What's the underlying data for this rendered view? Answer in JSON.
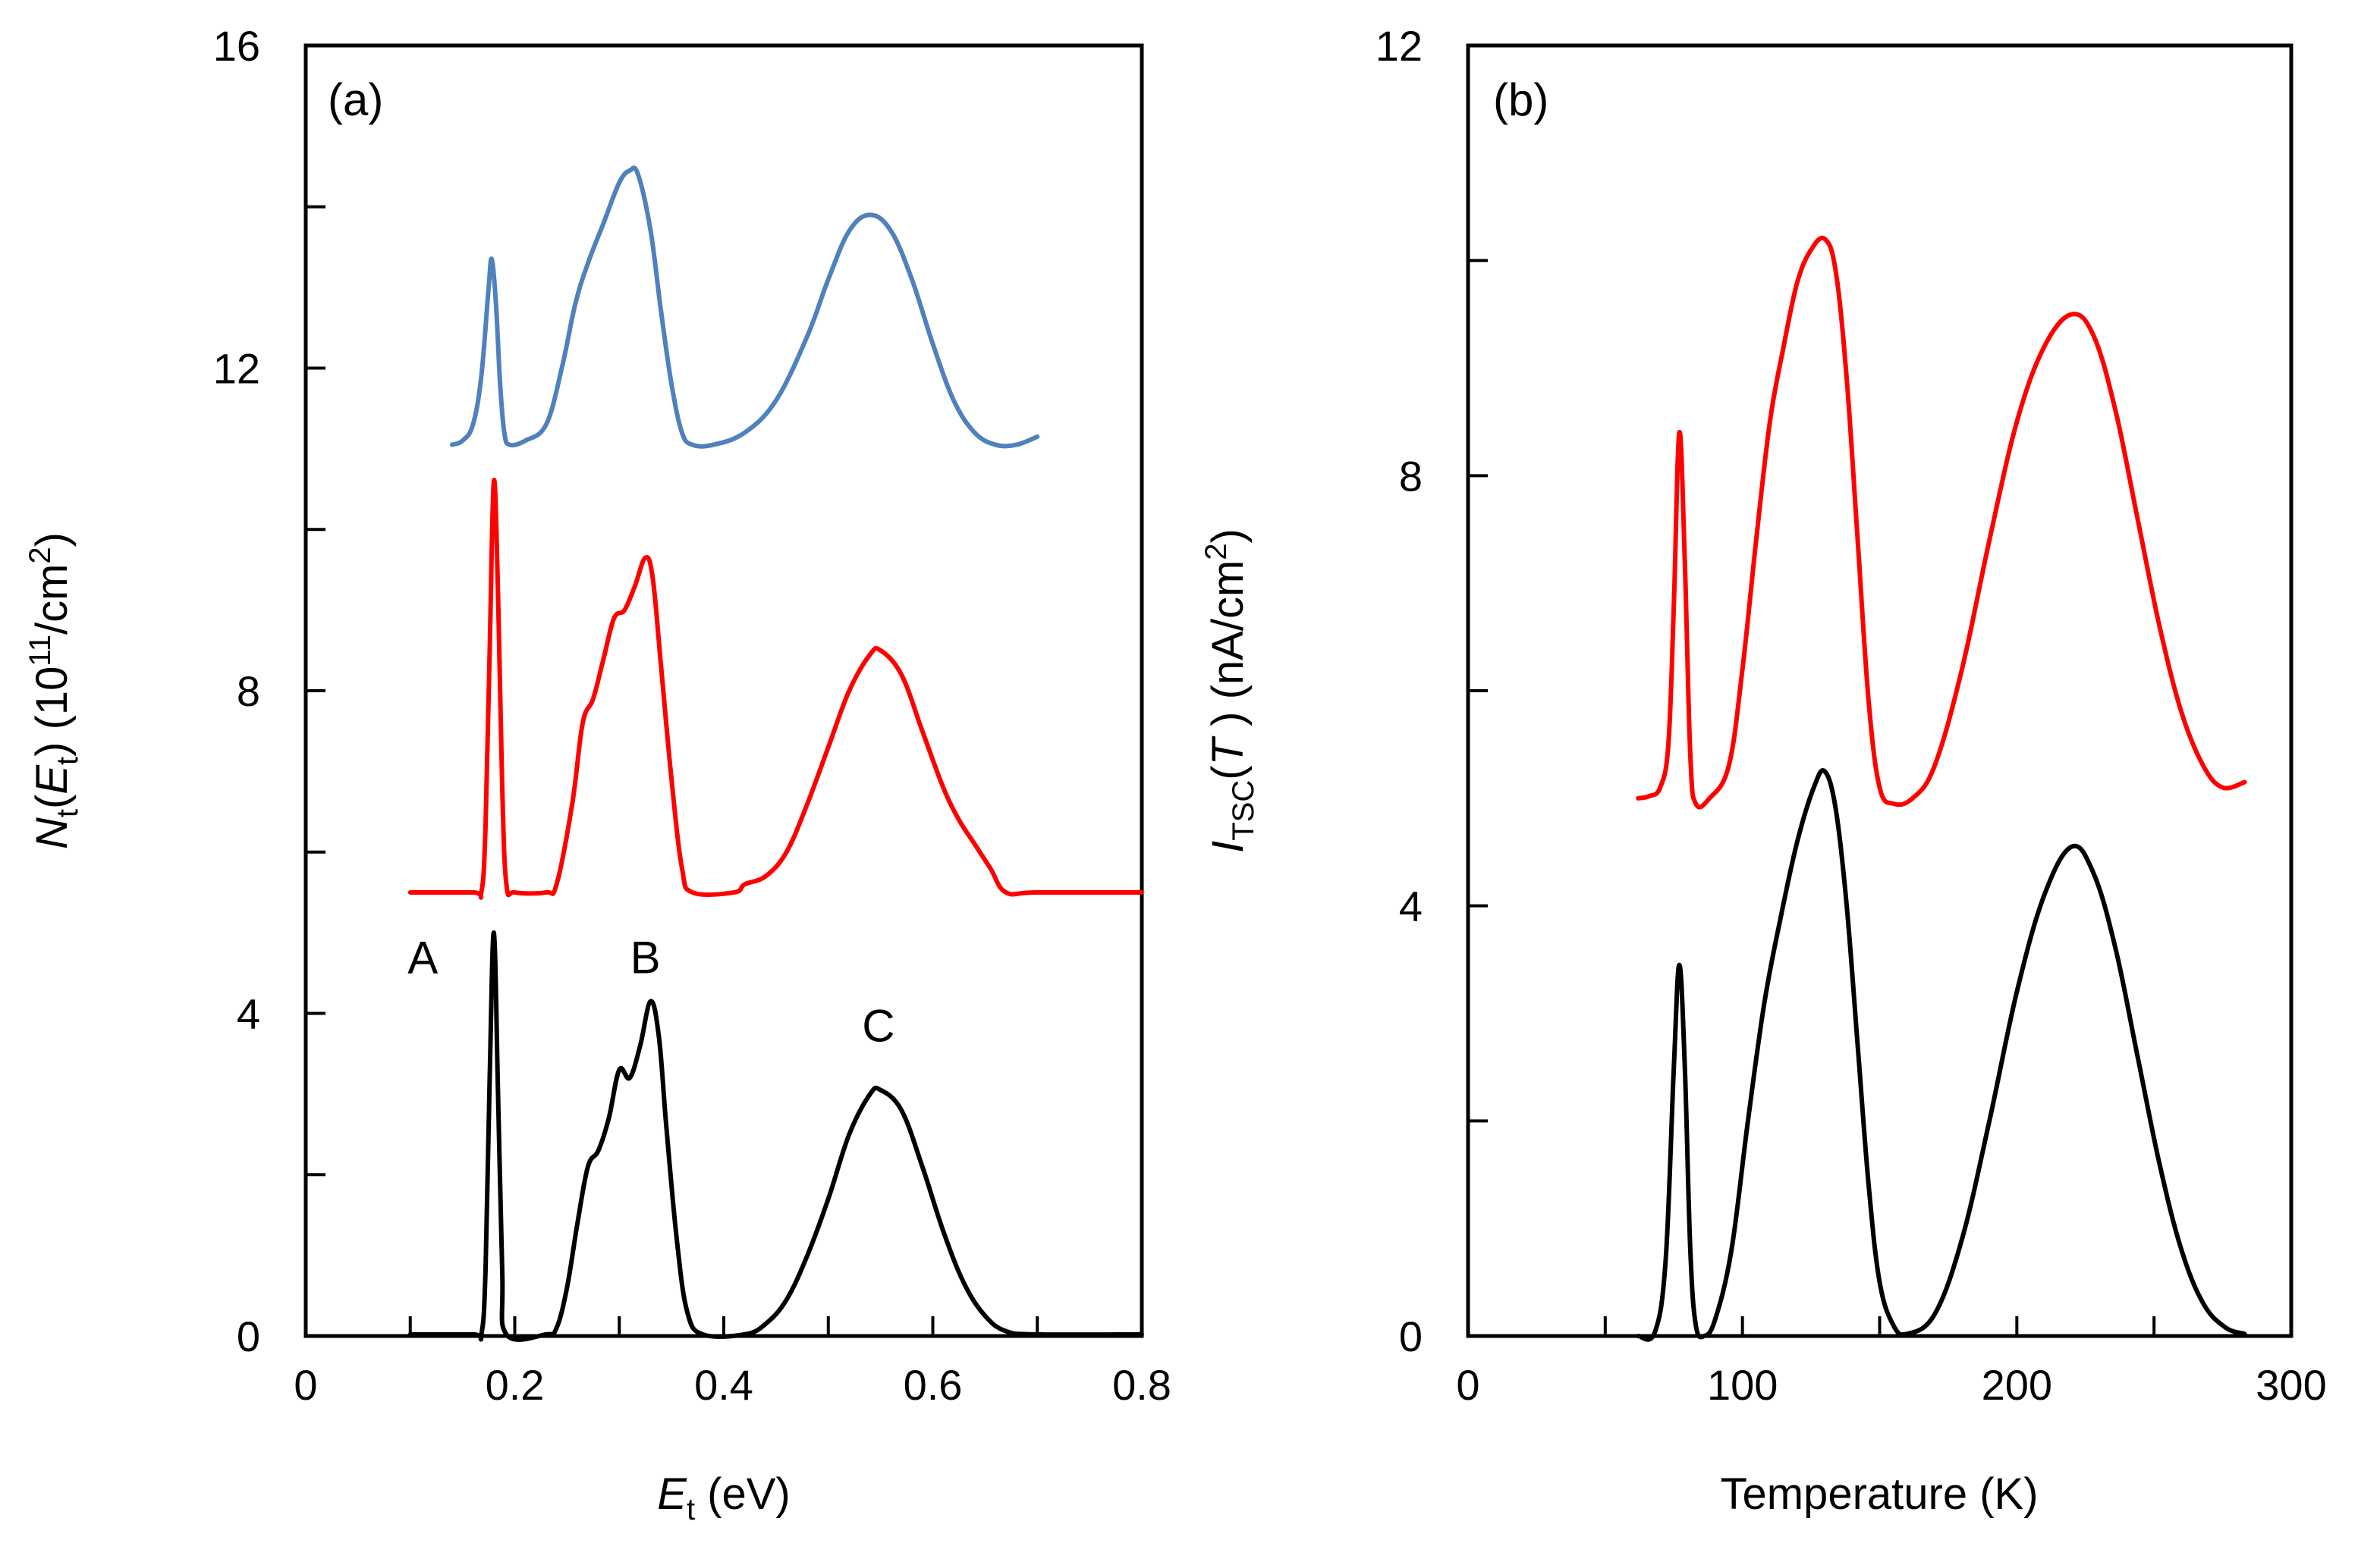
{
  "chart_data": [
    {
      "type": "line",
      "panel_label": "(a)",
      "xlabel": {
        "main": "E",
        "sub": "t",
        "unit": " (eV)"
      },
      "ylabel": {
        "main": "N",
        "sub": "t",
        "paren_open": "(",
        "arg": "E",
        "arg_sub": "t",
        "paren_close": ")",
        "unit_pre": " (10",
        "unit_sup": "11",
        "unit_post": "/cm",
        "unit_sup2": "2",
        "unit_end": ")"
      },
      "xlim": [
        0,
        0.8
      ],
      "ylim": [
        0,
        16
      ],
      "x_ticks": [
        "0",
        "0.2",
        "0.4",
        "0.6",
        "0.8"
      ],
      "x_tick_values": [
        0,
        0.2,
        0.4,
        0.6,
        0.8
      ],
      "y_ticks": [
        "0",
        "4",
        "8",
        "12",
        "16"
      ],
      "y_tick_values": [
        0,
        4,
        8,
        12,
        16
      ],
      "grid": false,
      "annotations": [
        {
          "text": "A",
          "x": 0.112,
          "y": 4.5
        },
        {
          "text": "B",
          "x": 0.325,
          "y": 4.5
        },
        {
          "text": "C",
          "x": 0.548,
          "y": 3.65
        }
      ],
      "series": [
        {
          "color": "#4f81bd",
          "points": [
            [
              0.14,
              11.05
            ],
            [
              0.15,
              11.1
            ],
            [
              0.16,
              11.3
            ],
            [
              0.168,
              11.9
            ],
            [
              0.175,
              13.0
            ],
            [
              0.178,
              13.35
            ],
            [
              0.182,
              12.8
            ],
            [
              0.186,
              11.8
            ],
            [
              0.19,
              11.2
            ],
            [
              0.195,
              11.05
            ],
            [
              0.21,
              11.1
            ],
            [
              0.23,
              11.3
            ],
            [
              0.245,
              12.0
            ],
            [
              0.258,
              12.8
            ],
            [
              0.27,
              13.3
            ],
            [
              0.285,
              13.8
            ],
            [
              0.3,
              14.3
            ],
            [
              0.31,
              14.45
            ],
            [
              0.318,
              14.4
            ],
            [
              0.33,
              13.7
            ],
            [
              0.34,
              12.7
            ],
            [
              0.35,
              11.8
            ],
            [
              0.36,
              11.2
            ],
            [
              0.37,
              11.05
            ],
            [
              0.39,
              11.05
            ],
            [
              0.42,
              11.2
            ],
            [
              0.45,
              11.6
            ],
            [
              0.48,
              12.4
            ],
            [
              0.5,
              13.1
            ],
            [
              0.52,
              13.7
            ],
            [
              0.54,
              13.9
            ],
            [
              0.56,
              13.7
            ],
            [
              0.58,
              13.1
            ],
            [
              0.6,
              12.3
            ],
            [
              0.62,
              11.6
            ],
            [
              0.64,
              11.2
            ],
            [
              0.66,
              11.05
            ],
            [
              0.68,
              11.05
            ],
            [
              0.7,
              11.15
            ]
          ]
        },
        {
          "color": "#ff0000",
          "points": [
            [
              0.1,
              5.5
            ],
            [
              0.16,
              5.5
            ],
            [
              0.168,
              5.5
            ],
            [
              0.172,
              6.3
            ],
            [
              0.176,
              8.5
            ],
            [
              0.18,
              10.6
            ],
            [
              0.184,
              9.2
            ],
            [
              0.188,
              6.8
            ],
            [
              0.192,
              5.6
            ],
            [
              0.2,
              5.5
            ],
            [
              0.23,
              5.5
            ],
            [
              0.24,
              5.6
            ],
            [
              0.255,
              6.6
            ],
            [
              0.265,
              7.6
            ],
            [
              0.275,
              7.9
            ],
            [
              0.285,
              8.4
            ],
            [
              0.295,
              8.9
            ],
            [
              0.305,
              9.0
            ],
            [
              0.315,
              9.3
            ],
            [
              0.325,
              9.65
            ],
            [
              0.332,
              9.4
            ],
            [
              0.34,
              8.3
            ],
            [
              0.35,
              6.9
            ],
            [
              0.36,
              5.8
            ],
            [
              0.37,
              5.5
            ],
            [
              0.41,
              5.5
            ],
            [
              0.42,
              5.6
            ],
            [
              0.44,
              5.7
            ],
            [
              0.46,
              6.0
            ],
            [
              0.48,
              6.6
            ],
            [
              0.5,
              7.3
            ],
            [
              0.52,
              8.0
            ],
            [
              0.54,
              8.45
            ],
            [
              0.55,
              8.5
            ],
            [
              0.57,
              8.2
            ],
            [
              0.59,
              7.5
            ],
            [
              0.61,
              6.8
            ],
            [
              0.625,
              6.4
            ],
            [
              0.64,
              6.1
            ],
            [
              0.655,
              5.8
            ],
            [
              0.67,
              5.5
            ],
            [
              0.7,
              5.5
            ],
            [
              0.8,
              5.5
            ]
          ]
        },
        {
          "color": "#000000",
          "points": [
            [
              0.1,
              0.02
            ],
            [
              0.16,
              0.02
            ],
            [
              0.168,
              0.02
            ],
            [
              0.172,
              0.8
            ],
            [
              0.176,
              3.2
            ],
            [
              0.18,
              5.0
            ],
            [
              0.184,
              3.0
            ],
            [
              0.188,
              0.8
            ],
            [
              0.192,
              0.02
            ],
            [
              0.23,
              0.02
            ],
            [
              0.24,
              0.1
            ],
            [
              0.25,
              0.6
            ],
            [
              0.26,
              1.4
            ],
            [
              0.27,
              2.1
            ],
            [
              0.28,
              2.3
            ],
            [
              0.29,
              2.7
            ],
            [
              0.3,
              3.3
            ],
            [
              0.31,
              3.2
            ],
            [
              0.32,
              3.6
            ],
            [
              0.33,
              4.15
            ],
            [
              0.338,
              3.7
            ],
            [
              0.345,
              2.6
            ],
            [
              0.355,
              1.2
            ],
            [
              0.365,
              0.3
            ],
            [
              0.38,
              0.02
            ],
            [
              0.42,
              0.02
            ],
            [
              0.44,
              0.15
            ],
            [
              0.46,
              0.45
            ],
            [
              0.48,
              1.0
            ],
            [
              0.5,
              1.7
            ],
            [
              0.52,
              2.5
            ],
            [
              0.54,
              3.0
            ],
            [
              0.55,
              3.05
            ],
            [
              0.57,
              2.8
            ],
            [
              0.59,
              2.1
            ],
            [
              0.61,
              1.3
            ],
            [
              0.63,
              0.65
            ],
            [
              0.65,
              0.25
            ],
            [
              0.67,
              0.06
            ],
            [
              0.7,
              0.02
            ],
            [
              0.8,
              0.02
            ]
          ]
        }
      ]
    },
    {
      "type": "line",
      "panel_label": "(b)",
      "xlabel": {
        "main": "Temperature (K)"
      },
      "ylabel": {
        "main": "I",
        "sub": "TSC",
        "paren_open": "(",
        "arg": "T",
        "arg_sub": "",
        "paren_close": " )",
        "unit_pre": " (nA/cm",
        "unit_sup": "2",
        "unit_post": ")",
        "unit_sup2": "",
        "unit_end": ""
      },
      "xlim": [
        0,
        300
      ],
      "ylim": [
        0,
        12
      ],
      "x_ticks": [
        "0",
        "100",
        "200",
        "300"
      ],
      "x_tick_values": [
        0,
        100,
        200,
        300
      ],
      "y_ticks": [
        "0",
        "4",
        "8",
        "12"
      ],
      "y_tick_values": [
        0,
        4,
        8,
        12
      ],
      "grid": false,
      "annotations": [],
      "series": [
        {
          "color": "#ff0000",
          "points": [
            [
              62,
              5.0
            ],
            [
              66,
              5.02
            ],
            [
              70,
              5.1
            ],
            [
              73,
              5.5
            ],
            [
              75,
              6.8
            ],
            [
              77,
              8.4
            ],
            [
              79,
              7.2
            ],
            [
              81,
              5.4
            ],
            [
              83,
              4.95
            ],
            [
              88,
              5.0
            ],
            [
              95,
              5.3
            ],
            [
              100,
              6.2
            ],
            [
              105,
              7.4
            ],
            [
              110,
              8.5
            ],
            [
              115,
              9.2
            ],
            [
              120,
              9.8
            ],
            [
              125,
              10.1
            ],
            [
              130,
              10.2
            ],
            [
              134,
              9.9
            ],
            [
              138,
              8.9
            ],
            [
              142,
              7.4
            ],
            [
              146,
              5.9
            ],
            [
              150,
              5.1
            ],
            [
              155,
              4.95
            ],
            [
              162,
              5.0
            ],
            [
              170,
              5.3
            ],
            [
              180,
              6.2
            ],
            [
              190,
              7.4
            ],
            [
              200,
              8.5
            ],
            [
              210,
              9.2
            ],
            [
              220,
              9.5
            ],
            [
              228,
              9.3
            ],
            [
              236,
              8.6
            ],
            [
              244,
              7.6
            ],
            [
              252,
              6.6
            ],
            [
              260,
              5.8
            ],
            [
              268,
              5.3
            ],
            [
              275,
              5.1
            ],
            [
              283,
              5.15
            ]
          ]
        },
        {
          "color": "#000000",
          "points": [
            [
              62,
              0.0
            ],
            [
              68,
              0.03
            ],
            [
              72,
              0.7
            ],
            [
              75,
              2.5
            ],
            [
              77,
              3.45
            ],
            [
              79,
              2.5
            ],
            [
              81,
              0.8
            ],
            [
              83,
              0.1
            ],
            [
              86,
              0.0
            ],
            [
              90,
              0.15
            ],
            [
              96,
              0.8
            ],
            [
              102,
              2.0
            ],
            [
              108,
              3.1
            ],
            [
              114,
              3.9
            ],
            [
              120,
              4.6
            ],
            [
              126,
              5.1
            ],
            [
              130,
              5.25
            ],
            [
              134,
              4.9
            ],
            [
              138,
              4.0
            ],
            [
              142,
              2.7
            ],
            [
              146,
              1.4
            ],
            [
              150,
              0.5
            ],
            [
              155,
              0.1
            ],
            [
              160,
              0.02
            ],
            [
              170,
              0.2
            ],
            [
              180,
              0.9
            ],
            [
              190,
              2.0
            ],
            [
              200,
              3.2
            ],
            [
              210,
              4.1
            ],
            [
              220,
              4.55
            ],
            [
              228,
              4.3
            ],
            [
              236,
              3.6
            ],
            [
              244,
              2.6
            ],
            [
              252,
              1.6
            ],
            [
              260,
              0.8
            ],
            [
              268,
              0.3
            ],
            [
              276,
              0.08
            ],
            [
              283,
              0.02
            ]
          ]
        }
      ]
    }
  ]
}
